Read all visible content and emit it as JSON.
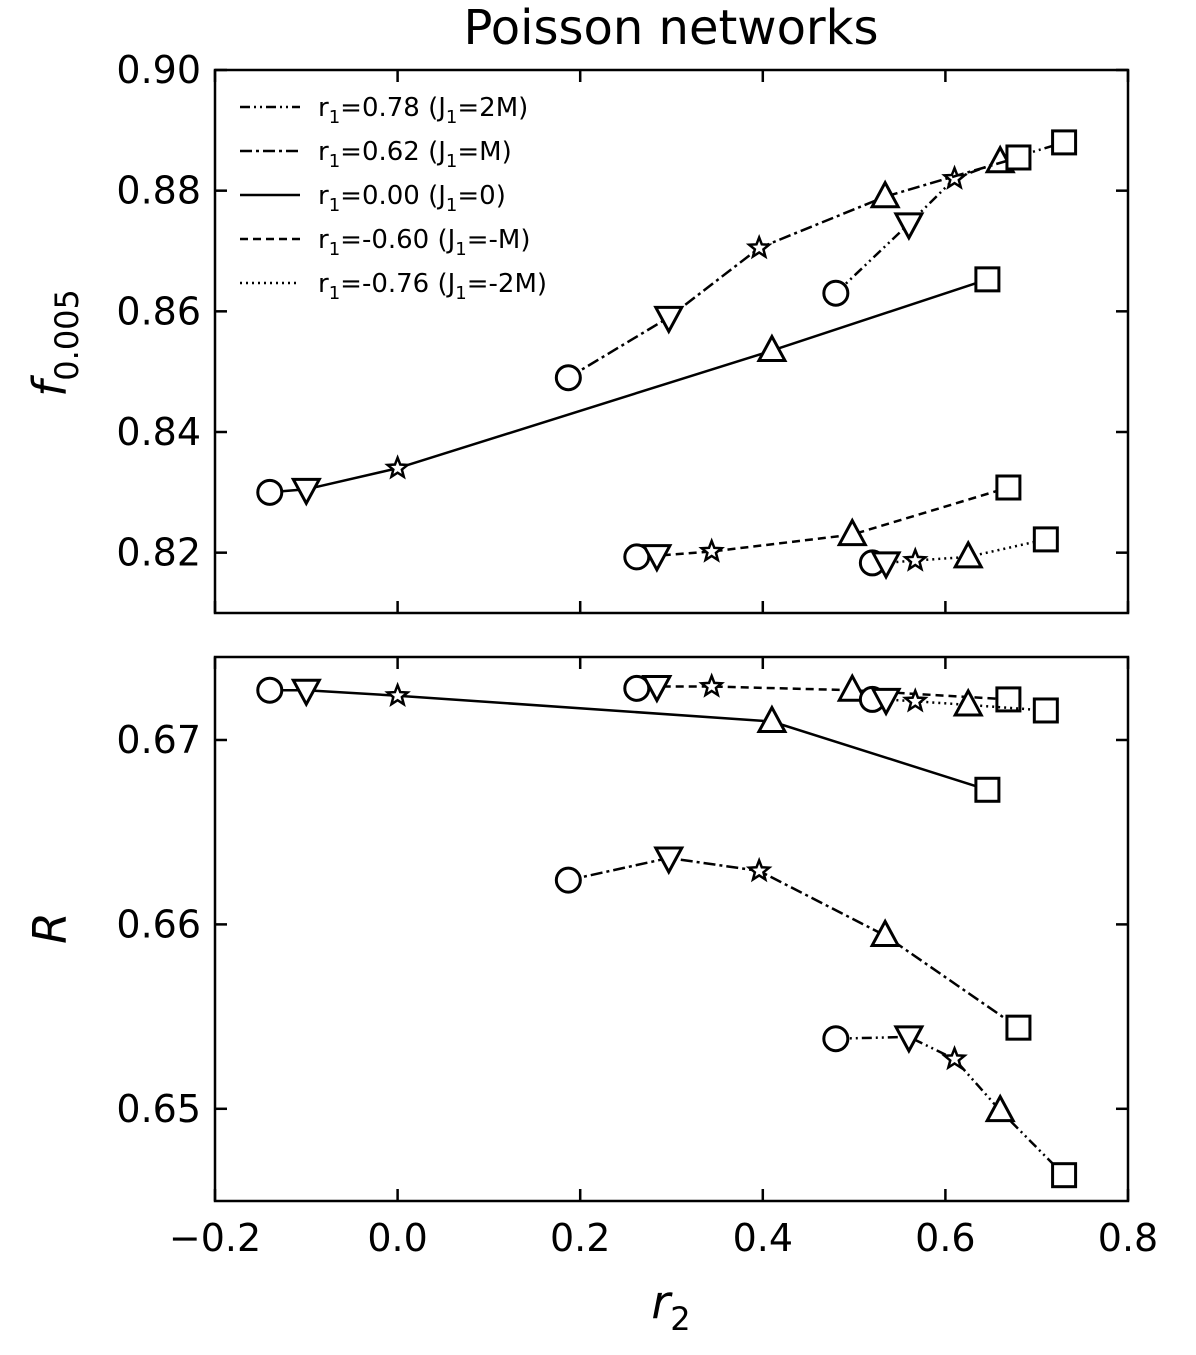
{
  "chart_data": {
    "type": "line",
    "title": "Poisson networks",
    "xlabel": "r",
    "xlabel_sub": "2",
    "xlim": [
      -0.2,
      0.8
    ],
    "xticks": [
      -0.2,
      0.0,
      0.2,
      0.4,
      0.6,
      0.8
    ],
    "xtick_labels": [
      "−0.2",
      "0.0",
      "0.2",
      "0.4",
      "0.6",
      "0.8"
    ],
    "legend": [
      {
        "series_id": "r078",
        "main": "r",
        "sub": "1",
        "rest": "=0.78 (J",
        "sub2": "1",
        "rest2": "=2M)",
        "dash": "10,4,2,4,2,4"
      },
      {
        "series_id": "r062",
        "main": "r",
        "sub": "1",
        "rest": "=0.62 (J",
        "sub2": "1",
        "rest2": "=M)",
        "dash": "12,4,3,4"
      },
      {
        "series_id": "r000",
        "main": "r",
        "sub": "1",
        "rest": "=0.00 (J",
        "sub2": "1",
        "rest2": "=0)",
        "dash": ""
      },
      {
        "series_id": "rm060",
        "main": "r",
        "sub": "1",
        "rest": "=-0.60 (J",
        "sub2": "1",
        "rest2": "=-M)",
        "dash": "8,5"
      },
      {
        "series_id": "rm076",
        "main": "r",
        "sub": "1",
        "rest": "=-0.76 (J",
        "sub2": "1",
        "rest2": "=-2M)",
        "dash": "2,4"
      }
    ],
    "panels": [
      {
        "id": "top",
        "ylabel": "f",
        "ylabel_sub": "0.005",
        "ylim": [
          0.81,
          0.9
        ],
        "yticks": [
          0.82,
          0.84,
          0.86,
          0.88,
          0.9
        ],
        "ytick_labels": [
          "0.82",
          "0.84",
          "0.86",
          "0.88",
          "0.90"
        ],
        "series": [
          {
            "id": "r078",
            "dash": "10,4,2,4,2,4",
            "x": [
              0.48,
              0.56,
              0.61,
              0.66,
              0.73
            ],
            "y": [
              0.863,
              0.8745,
              0.882,
              0.8848,
              0.888
            ],
            "markers": [
              "circle",
              "tri-down",
              "star",
              "tri-up",
              "square"
            ]
          },
          {
            "id": "r062",
            "dash": "12,4,3,4",
            "x": [
              0.187,
              0.297,
              0.396,
              0.534,
              0.68
            ],
            "y": [
              0.849,
              0.859,
              0.8705,
              0.879,
              0.8855
            ],
            "markers": [
              "circle",
              "tri-down",
              "star",
              "tri-up",
              "square"
            ]
          },
          {
            "id": "r000",
            "dash": "",
            "x": [
              -0.14,
              -0.1,
              0.0,
              0.41,
              0.646
            ],
            "y": [
              0.83,
              0.8305,
              0.834,
              0.8535,
              0.8653
            ],
            "markers": [
              "circle",
              "tri-down",
              "star",
              "tri-up",
              "square"
            ]
          },
          {
            "id": "rm060",
            "dash": "8,5",
            "x": [
              0.262,
              0.284,
              0.344,
              0.498,
              0.669
            ],
            "y": [
              0.8193,
              0.8195,
              0.8202,
              0.823,
              0.8308
            ],
            "markers": [
              "circle",
              "tri-down",
              "star",
              "tri-up",
              "square"
            ]
          },
          {
            "id": "rm076",
            "dash": "2,4",
            "x": [
              0.52,
              0.535,
              0.567,
              0.625,
              0.71
            ],
            "y": [
              0.8183,
              0.8183,
              0.8187,
              0.8193,
              0.8222
            ],
            "markers": [
              "circle",
              "tri-down",
              "star",
              "tri-up",
              "square"
            ]
          }
        ]
      },
      {
        "id": "bottom",
        "ylabel": "R",
        "ylabel_sub": "",
        "ylim": [
          0.645,
          0.6745
        ],
        "yticks": [
          0.65,
          0.66,
          0.67
        ],
        "ytick_labels": [
          "0.65",
          "0.66",
          "0.67"
        ],
        "series": [
          {
            "id": "r078",
            "dash": "10,4,2,4,2,4",
            "x": [
              0.48,
              0.56,
              0.61,
              0.66,
              0.73
            ],
            "y": [
              0.6538,
              0.6539,
              0.6527,
              0.6499,
              0.6464
            ],
            "markers": [
              "circle",
              "tri-down",
              "star",
              "tri-up",
              "square"
            ]
          },
          {
            "id": "r062",
            "dash": "12,4,3,4",
            "x": [
              0.187,
              0.297,
              0.396,
              0.534,
              0.68
            ],
            "y": [
              0.6624,
              0.6636,
              0.6629,
              0.6594,
              0.6544
            ],
            "markers": [
              "circle",
              "tri-down",
              "star",
              "tri-up",
              "square"
            ]
          },
          {
            "id": "r000",
            "dash": "",
            "x": [
              -0.14,
              -0.1,
              0.0,
              0.41,
              0.646
            ],
            "y": [
              0.6727,
              0.6727,
              0.6724,
              0.671,
              0.6673
            ],
            "markers": [
              "circle",
              "tri-down",
              "star",
              "tri-up",
              "square"
            ]
          },
          {
            "id": "rm060",
            "dash": "8,5",
            "x": [
              0.262,
              0.284,
              0.344,
              0.498,
              0.669
            ],
            "y": [
              0.6728,
              0.6729,
              0.6729,
              0.6727,
              0.6722
            ],
            "markers": [
              "circle",
              "tri-down",
              "star",
              "tri-up",
              "square"
            ]
          },
          {
            "id": "rm076",
            "dash": "2,4",
            "x": [
              0.52,
              0.535,
              0.567,
              0.625,
              0.71
            ],
            "y": [
              0.6722,
              0.6722,
              0.6721,
              0.6719,
              0.6716
            ],
            "markers": [
              "circle",
              "tri-down",
              "star",
              "tri-up",
              "square"
            ]
          }
        ]
      }
    ]
  }
}
